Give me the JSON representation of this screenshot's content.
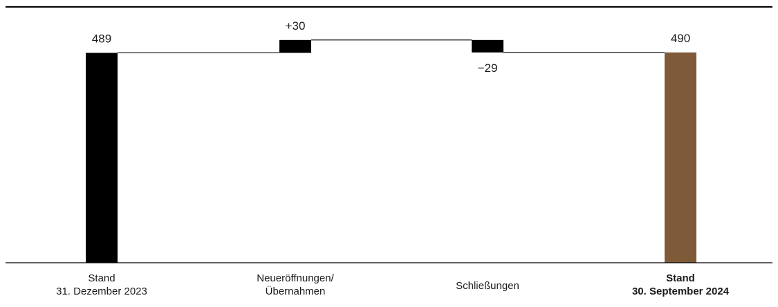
{
  "chart_data": {
    "type": "waterfall",
    "title": "",
    "xlabel": "",
    "ylabel": "",
    "categories": [
      {
        "lines": [
          "Stand",
          "31. Dezember 2023"
        ],
        "bold": false
      },
      {
        "lines": [
          "Neueröffnungen/",
          "Übernahmen"
        ],
        "bold": false
      },
      {
        "lines": [
          "Schließungen"
        ],
        "bold": false
      },
      {
        "lines": [
          "Stand",
          "30. September 2024"
        ],
        "bold": true
      }
    ],
    "steps": [
      {
        "kind": "total",
        "value": 489,
        "label": "489",
        "color": "#000000"
      },
      {
        "kind": "delta",
        "value": 30,
        "label": "+30",
        "color": "#000000"
      },
      {
        "kind": "delta",
        "value": -29,
        "label": "−29",
        "color": "#000000"
      },
      {
        "kind": "total",
        "value": 490,
        "label": "490",
        "color": "#7f5a38"
      }
    ],
    "ylim": [
      0,
      530
    ],
    "grid": false,
    "legend": "none"
  }
}
